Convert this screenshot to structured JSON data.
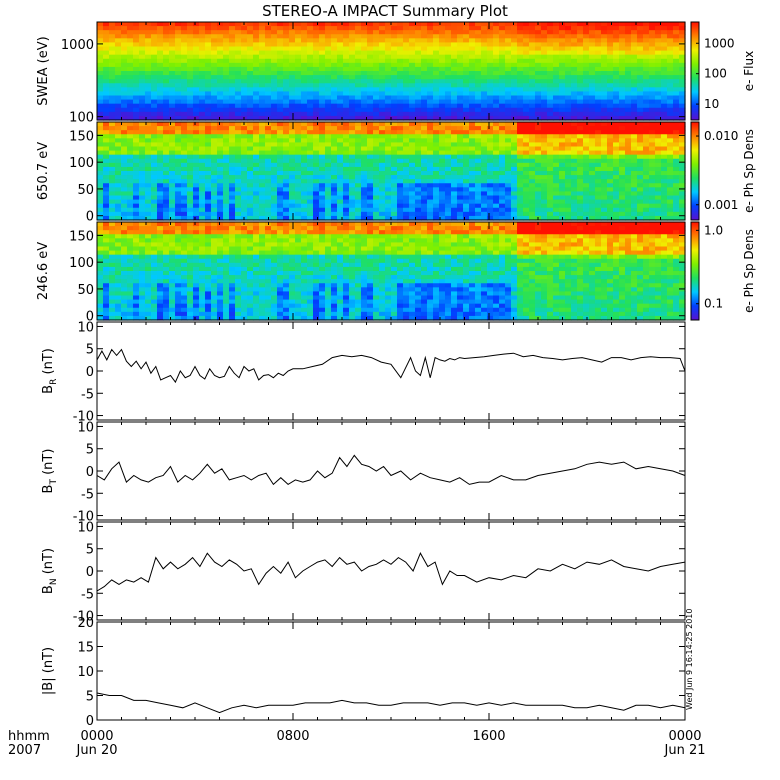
{
  "title": "STEREO-A IMPACT Summary Plot",
  "stamp": "Wed Jun  9 16:14:25 2010",
  "time_axis": {
    "row1_label": "hhmm",
    "row2_label": "2007",
    "ticks": [
      {
        "hour": 0,
        "hhmm": "0000",
        "date": "Jun 20"
      },
      {
        "hour": 8,
        "hhmm": "0800",
        "date": ""
      },
      {
        "hour": 16,
        "hhmm": "1600",
        "date": ""
      },
      {
        "hour": 24,
        "hhmm": "0000",
        "date": "Jun 21"
      }
    ],
    "range_hours": [
      0,
      24
    ]
  },
  "colors": {
    "spectrogram_scale": [
      "#5a10d0",
      "#0040ff",
      "#00c8ff",
      "#20e060",
      "#80f000",
      "#f0f000",
      "#ff8000",
      "#ff1000"
    ],
    "line": "#000000"
  },
  "chart_data": [
    {
      "type": "heatmap",
      "ylabel": "SWEA (eV)",
      "yscale": "log",
      "ylim": [
        90,
        2000
      ],
      "ytick_labels": [
        "1000",
        "100"
      ],
      "ytick_values": [
        1000,
        100
      ],
      "colorbar": {
        "label": "e- Flux",
        "scale": "log",
        "tick_labels": [
          "1000",
          "100",
          "10"
        ],
        "tick_values": [
          1000,
          100,
          10
        ],
        "range": [
          3,
          5000
        ]
      }
    },
    {
      "type": "heatmap",
      "ylabel": "650.7 eV",
      "ylim": [
        -8,
        175
      ],
      "ytick_labels": [
        "150",
        "100",
        "50",
        "0"
      ],
      "ytick_values": [
        150,
        100,
        50,
        0
      ],
      "colorbar": {
        "label": "e- Ph Sp Dens",
        "scale": "log",
        "tick_labels": [
          "0.010",
          "0.001"
        ],
        "tick_values": [
          0.01,
          0.001
        ],
        "range": [
          0.0006,
          0.016
        ]
      }
    },
    {
      "type": "heatmap",
      "ylabel": "246.6 eV",
      "ylim": [
        -8,
        175
      ],
      "ytick_labels": [
        "150",
        "100",
        "50",
        "0"
      ],
      "ytick_values": [
        150,
        100,
        50,
        0
      ],
      "colorbar": {
        "label": "e- Ph Sp Dens",
        "scale": "log",
        "tick_labels": [
          "1.0",
          "0.1"
        ],
        "tick_values": [
          1.0,
          0.1
        ],
        "range": [
          0.06,
          1.3
        ]
      }
    },
    {
      "type": "line",
      "ylabel": "B_R (nT)",
      "ylabel_main": "B",
      "ylabel_sub": "R",
      "ylabel_unit": "(nT)",
      "ylim": [
        -11,
        11
      ],
      "ytick_labels": [
        "10",
        "5",
        "0",
        "-5",
        "-10"
      ],
      "ytick_values": [
        10,
        5,
        0,
        -5,
        -10
      ],
      "x": [
        0,
        0.2,
        0.4,
        0.6,
        0.8,
        1.0,
        1.2,
        1.4,
        1.6,
        1.8,
        2.0,
        2.2,
        2.4,
        2.6,
        2.8,
        3.0,
        3.2,
        3.4,
        3.6,
        3.8,
        4.0,
        4.2,
        4.4,
        4.6,
        4.8,
        5.0,
        5.2,
        5.4,
        5.6,
        5.8,
        6.0,
        6.2,
        6.4,
        6.6,
        6.8,
        7.0,
        7.2,
        7.4,
        7.6,
        7.8,
        8.0,
        8.4,
        8.8,
        9.2,
        9.6,
        10.0,
        10.4,
        10.8,
        11.2,
        11.6,
        12.0,
        12.4,
        12.8,
        13.0,
        13.2,
        13.4,
        13.6,
        13.8,
        14.0,
        14.2,
        14.4,
        14.6,
        14.8,
        15.0,
        15.4,
        15.8,
        16.2,
        16.6,
        17.0,
        17.4,
        17.8,
        18.2,
        18.6,
        19.0,
        19.4,
        19.8,
        20.2,
        20.6,
        21.0,
        21.4,
        21.8,
        22.2,
        22.6,
        23.0,
        23.4,
        23.8,
        24.0
      ],
      "y": [
        2.5,
        4.5,
        2.5,
        4.8,
        3.5,
        4.8,
        2.2,
        1.0,
        2.2,
        0.5,
        2.0,
        -0.5,
        1.0,
        -2.0,
        -1.5,
        -1.0,
        -2.5,
        0.0,
        -1.5,
        -1.0,
        1.0,
        -1.0,
        -1.8,
        0.5,
        -1.0,
        -1.5,
        -1.2,
        1.0,
        -0.5,
        -1.5,
        1.0,
        0.0,
        0.5,
        -2.0,
        -1.0,
        -0.8,
        -1.5,
        -0.5,
        -1.0,
        0.0,
        0.5,
        0.5,
        1.0,
        1.5,
        3.0,
        3.5,
        3.2,
        3.5,
        3.0,
        2.0,
        1.5,
        -1.5,
        3.0,
        0.0,
        -1.0,
        3.0,
        -1.5,
        3.0,
        2.5,
        2.2,
        2.8,
        2.5,
        3.0,
        2.8,
        3.0,
        3.2,
        3.5,
        3.8,
        4.0,
        3.2,
        3.5,
        3.0,
        2.8,
        2.5,
        2.8,
        3.0,
        2.5,
        2.0,
        3.0,
        3.0,
        2.5,
        3.0,
        3.2,
        3.0,
        3.0,
        2.8,
        0.0
      ]
    },
    {
      "type": "line",
      "ylabel": "B_T (nT)",
      "ylabel_main": "B",
      "ylabel_sub": "T",
      "ylabel_unit": "(nT)",
      "ylim": [
        -11,
        11
      ],
      "ytick_labels": [
        "10",
        "5",
        "0",
        "-5",
        "-10"
      ],
      "ytick_values": [
        10,
        5,
        0,
        -5,
        -10
      ],
      "x": [
        0,
        0.3,
        0.6,
        0.9,
        1.2,
        1.5,
        1.8,
        2.1,
        2.4,
        2.7,
        3.0,
        3.3,
        3.6,
        3.9,
        4.2,
        4.5,
        4.8,
        5.1,
        5.4,
        5.7,
        6.0,
        6.3,
        6.6,
        6.9,
        7.2,
        7.5,
        7.8,
        8.1,
        8.4,
        8.7,
        9.0,
        9.3,
        9.6,
        9.9,
        10.2,
        10.5,
        10.8,
        11.1,
        11.4,
        11.7,
        12.0,
        12.4,
        12.8,
        13.2,
        13.6,
        14.0,
        14.4,
        14.8,
        15.2,
        15.6,
        16.0,
        16.5,
        17.0,
        17.5,
        18.0,
        18.5,
        19.0,
        19.5,
        20.0,
        20.5,
        21.0,
        21.5,
        22.0,
        22.5,
        23.0,
        23.5,
        24.0
      ],
      "y": [
        -1.0,
        -2.0,
        0.5,
        2.0,
        -2.5,
        -1.0,
        -2.0,
        -2.5,
        -1.5,
        -1.0,
        1.0,
        -2.5,
        -1.0,
        -2.0,
        -0.5,
        1.5,
        -0.5,
        0.5,
        -2.0,
        -1.5,
        -1.0,
        -2.0,
        -1.0,
        -0.5,
        -3.0,
        -1.5,
        -3.0,
        -2.0,
        -2.5,
        -2.0,
        0.0,
        -1.5,
        -0.5,
        3.0,
        1.0,
        3.5,
        1.5,
        1.0,
        0.0,
        1.0,
        -1.0,
        0.0,
        -2.0,
        -0.5,
        -1.5,
        -2.0,
        -2.5,
        -1.5,
        -3.0,
        -2.5,
        -2.5,
        -1.0,
        -2.0,
        -2.0,
        -1.0,
        -0.5,
        0.0,
        0.5,
        1.5,
        2.0,
        1.5,
        2.0,
        0.5,
        1.0,
        0.5,
        0.0,
        -1.0
      ]
    },
    {
      "type": "line",
      "ylabel": "B_N (nT)",
      "ylabel_main": "B",
      "ylabel_sub": "N",
      "ylabel_unit": "(nT)",
      "ylim": [
        -11,
        11
      ],
      "ytick_labels": [
        "10",
        "5",
        "0",
        "-5",
        "-10"
      ],
      "ytick_values": [
        10,
        5,
        0,
        -5,
        -10
      ],
      "x": [
        0,
        0.3,
        0.6,
        0.9,
        1.2,
        1.5,
        1.8,
        2.1,
        2.4,
        2.7,
        3.0,
        3.3,
        3.6,
        3.9,
        4.2,
        4.5,
        4.8,
        5.1,
        5.4,
        5.7,
        6.0,
        6.3,
        6.6,
        6.9,
        7.2,
        7.5,
        7.8,
        8.1,
        8.4,
        8.7,
        9.0,
        9.3,
        9.6,
        9.9,
        10.2,
        10.5,
        10.8,
        11.1,
        11.4,
        11.7,
        12.0,
        12.3,
        12.6,
        12.9,
        13.2,
        13.5,
        13.8,
        14.1,
        14.4,
        14.7,
        15.0,
        15.5,
        16.0,
        16.5,
        17.0,
        17.5,
        18.0,
        18.5,
        19.0,
        19.5,
        20.0,
        20.5,
        21.0,
        21.5,
        22.0,
        22.5,
        23.0,
        23.5,
        24.0
      ],
      "y": [
        -4.5,
        -3.5,
        -2.0,
        -3.0,
        -2.0,
        -2.5,
        -1.5,
        -2.5,
        3.0,
        0.5,
        2.0,
        0.5,
        1.5,
        3.0,
        1.0,
        4.0,
        2.0,
        1.0,
        2.5,
        1.5,
        0.0,
        0.5,
        -3.0,
        -0.5,
        1.0,
        -0.5,
        2.0,
        -1.5,
        0.0,
        1.0,
        2.0,
        2.5,
        1.0,
        3.0,
        1.5,
        2.0,
        0.0,
        1.0,
        1.5,
        2.5,
        1.5,
        3.0,
        2.0,
        0.0,
        4.0,
        1.0,
        2.0,
        -3.0,
        0.0,
        -1.0,
        -1.0,
        -2.5,
        -1.5,
        -2.0,
        -1.0,
        -1.5,
        0.5,
        0.0,
        1.5,
        0.5,
        2.0,
        1.5,
        2.5,
        1.0,
        0.5,
        0.0,
        1.0,
        1.5,
        2.0
      ]
    },
    {
      "type": "line",
      "ylabel": "|B| (nT)",
      "ylabel_main": "|B|",
      "ylabel_sub": "",
      "ylabel_unit": "(nT)",
      "ylim": [
        0,
        20
      ],
      "ytick_labels": [
        "20",
        "15",
        "10",
        "5",
        "0"
      ],
      "ytick_values": [
        20,
        15,
        10,
        5,
        0
      ],
      "x": [
        0,
        0.5,
        1.0,
        1.5,
        2.0,
        2.5,
        3.0,
        3.5,
        4.0,
        4.5,
        5.0,
        5.5,
        6.0,
        6.5,
        7.0,
        7.5,
        8.0,
        8.5,
        9.0,
        9.5,
        10.0,
        10.5,
        11.0,
        11.5,
        12.0,
        12.5,
        13.0,
        13.5,
        14.0,
        14.5,
        15.0,
        15.5,
        16.0,
        16.5,
        17.0,
        17.5,
        18.0,
        18.5,
        19.0,
        19.5,
        20.0,
        20.5,
        21.0,
        21.5,
        22.0,
        22.5,
        23.0,
        23.5,
        24.0
      ],
      "y": [
        5.5,
        5.0,
        5.0,
        4.0,
        4.0,
        3.5,
        3.0,
        2.5,
        3.5,
        2.5,
        1.5,
        2.5,
        3.0,
        2.5,
        3.0,
        3.0,
        3.0,
        3.5,
        3.5,
        3.5,
        4.0,
        3.5,
        3.5,
        3.0,
        3.0,
        3.5,
        3.5,
        3.5,
        3.0,
        3.5,
        3.5,
        3.0,
        3.5,
        3.0,
        3.5,
        3.0,
        3.0,
        3.0,
        3.0,
        2.5,
        2.5,
        3.0,
        2.5,
        2.0,
        3.0,
        3.0,
        2.5,
        3.0,
        2.5
      ]
    }
  ]
}
